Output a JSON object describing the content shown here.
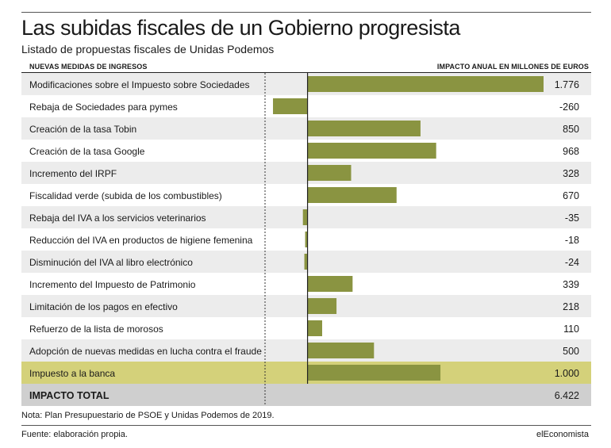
{
  "header": {
    "title": "Las subidas fiscales de un Gobierno progresista",
    "subtitle": "Listado de propuestas fiscales de Unidas Podemos",
    "col_left": "NUEVAS MEDIDAS DE INGRESOS",
    "col_right": "IMPACTO ANUAL EN MILLONES DE EUROS"
  },
  "footer": {
    "note": "Nota: Plan Presupuestario de PSOE y Unidas Podemos de 2019.",
    "source": "Fuente: elaboración propia.",
    "brand": "elEconomista"
  },
  "colors": {
    "bar": "#8a9441",
    "row_alt": "#ececec",
    "row_highlight": "#d4d17a",
    "row_total": "#cfcfcf"
  },
  "chart_data": {
    "type": "bar",
    "orientation": "horizontal",
    "categories": [
      "Modificaciones sobre el Impuesto sobre Sociedades",
      "Rebaja de Sociedades para pymes",
      "Creación de la tasa Tobin",
      "Creación de la tasa Google",
      "Incremento del IRPF",
      "Fiscalidad verde (subida de los combustibles)",
      "Rebaja del IVA a los servicios veterinarios",
      "Reducción del IVA en productos de higiene femenina",
      "Disminución del IVA al libro electrónico",
      "Incremento del Impuesto de Patrimonio",
      "Limitación de los pagos en efectivo",
      "Refuerzo de la lista de morosos",
      "Adopción de nuevas medidas en lucha contra el fraude",
      "Impuesto a la banca"
    ],
    "values": [
      1776,
      -260,
      850,
      968,
      328,
      670,
      -35,
      -18,
      -24,
      339,
      218,
      110,
      500,
      1000
    ],
    "value_labels": [
      "1.776",
      "-260",
      "850",
      "968",
      "328",
      "670",
      "-35",
      "-18",
      "-24",
      "339",
      "218",
      "110",
      "500",
      "1.000"
    ],
    "highlight_index": 13,
    "total_label": "IMPACTO TOTAL",
    "total_value": 6422,
    "total_value_label": "6.422",
    "xlim": [
      -290,
      1776
    ]
  }
}
